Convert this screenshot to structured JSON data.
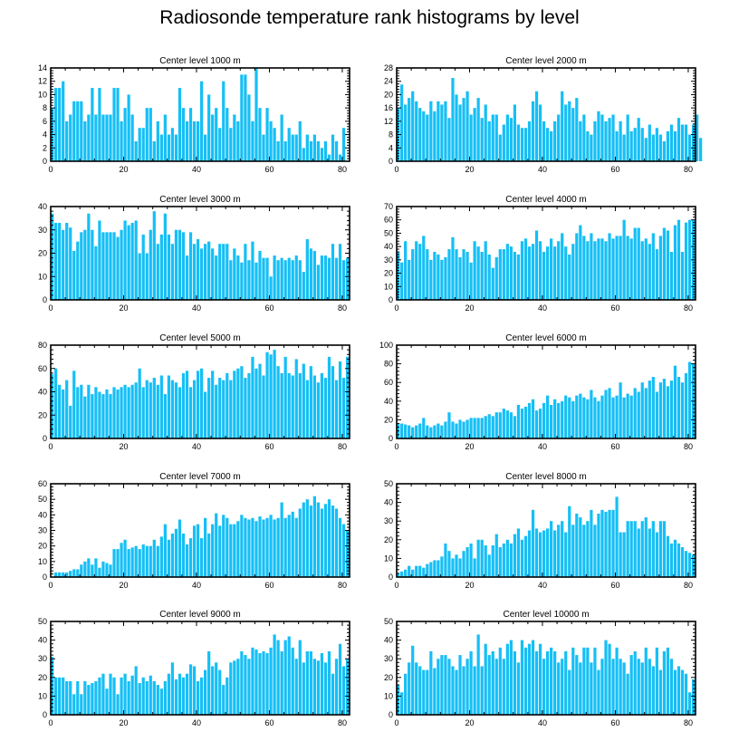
{
  "title": "Radiosonde temperature rank histograms by level",
  "colors": {
    "bar": "#15bff6",
    "axis": "#000000",
    "background": "#ffffff"
  },
  "chart_data": [
    {
      "type": "bar",
      "title": "Center level 1000 m",
      "xlim": [
        0,
        82
      ],
      "ylim": [
        0,
        14
      ],
      "xticks": [
        0,
        20,
        40,
        60,
        80
      ],
      "yticks": [
        0,
        2,
        4,
        6,
        8,
        10,
        12,
        14
      ],
      "values": [
        8,
        11,
        11,
        12,
        6,
        7,
        9,
        9,
        9,
        6,
        7,
        11,
        7,
        11,
        7,
        7,
        7,
        11,
        11,
        6,
        8,
        10,
        7,
        3,
        5,
        5,
        8,
        8,
        3,
        6,
        4,
        7,
        4,
        5,
        4,
        11,
        8,
        6,
        8,
        6,
        6,
        12,
        4,
        10,
        7,
        8,
        5,
        12,
        8,
        5,
        7,
        6,
        13,
        13,
        10,
        6,
        14,
        8,
        4,
        8,
        6,
        5,
        3,
        7,
        3,
        5,
        4,
        4,
        6,
        2,
        4,
        3,
        4,
        3,
        2,
        3,
        1,
        4,
        3,
        1,
        5,
        0
      ]
    },
    {
      "type": "bar",
      "title": "Center level 2000 m",
      "xlim": [
        0,
        82
      ],
      "ylim": [
        0,
        28
      ],
      "xticks": [
        0,
        20,
        40,
        60,
        80
      ],
      "yticks": [
        0,
        4,
        8,
        12,
        16,
        20,
        24,
        28
      ],
      "values": [
        16,
        23,
        17,
        19,
        21,
        18,
        16,
        15,
        14,
        18,
        15,
        18,
        17,
        18,
        13,
        25,
        20,
        17,
        19,
        21,
        14,
        16,
        19,
        13,
        17,
        12,
        14,
        14,
        8,
        11,
        14,
        13,
        17,
        11,
        10,
        10,
        12,
        18,
        21,
        17,
        12,
        10,
        9,
        12,
        14,
        21,
        17,
        18,
        16,
        19,
        12,
        14,
        9,
        8,
        12,
        15,
        14,
        12,
        13,
        14,
        9,
        12,
        8,
        14,
        9,
        10,
        13,
        10,
        7,
        11,
        8,
        10,
        8,
        6,
        9,
        11,
        9,
        13,
        11,
        11,
        8,
        11,
        14,
        7
      ]
    },
    {
      "type": "bar",
      "title": "Center level 3000 m",
      "xlim": [
        0,
        82
      ],
      "ylim": [
        0,
        40
      ],
      "xticks": [
        0,
        20,
        40,
        60,
        80
      ],
      "yticks": [
        0,
        10,
        20,
        30,
        40
      ],
      "values": [
        37,
        33,
        33,
        30,
        33,
        31,
        21,
        25,
        29,
        30,
        37,
        30,
        23,
        34,
        29,
        29,
        29,
        29,
        27,
        30,
        34,
        32,
        33,
        34,
        20,
        28,
        20,
        30,
        38,
        24,
        28,
        37,
        28,
        24,
        30,
        30,
        29,
        19,
        29,
        24,
        26,
        22,
        24,
        25,
        22,
        19,
        24,
        24,
        24,
        17,
        22,
        19,
        16,
        24,
        17,
        25,
        16,
        21,
        18,
        18,
        10,
        19,
        17,
        18,
        17,
        18,
        17,
        19,
        17,
        12,
        26,
        22,
        21,
        15,
        19,
        19,
        18,
        24,
        18,
        24,
        17,
        18
      ]
    },
    {
      "type": "bar",
      "title": "Center level 4000 m",
      "xlim": [
        0,
        82
      ],
      "ylim": [
        0,
        70
      ],
      "xticks": [
        0,
        20,
        40,
        60,
        80
      ],
      "yticks": [
        0,
        10,
        20,
        30,
        40,
        50,
        60,
        70
      ],
      "values": [
        36,
        28,
        44,
        30,
        38,
        44,
        42,
        48,
        38,
        30,
        36,
        34,
        30,
        32,
        38,
        47,
        38,
        32,
        38,
        36,
        28,
        44,
        40,
        36,
        44,
        34,
        24,
        32,
        38,
        38,
        42,
        40,
        36,
        34,
        44,
        46,
        40,
        42,
        52,
        44,
        36,
        40,
        46,
        40,
        44,
        50,
        40,
        34,
        42,
        50,
        56,
        48,
        44,
        50,
        44,
        46,
        46,
        44,
        50,
        46,
        48,
        48,
        60,
        48,
        46,
        54,
        54,
        44,
        46,
        42,
        50,
        38,
        48,
        54,
        52,
        36,
        56,
        60,
        36,
        58,
        60,
        60
      ]
    },
    {
      "type": "bar",
      "title": "Center level 5000 m",
      "xlim": [
        0,
        82
      ],
      "ylim": [
        0,
        80
      ],
      "xticks": [
        0,
        20,
        40,
        60,
        80
      ],
      "yticks": [
        0,
        20,
        40,
        60,
        80
      ],
      "values": [
        55,
        60,
        46,
        42,
        50,
        28,
        58,
        44,
        46,
        36,
        46,
        38,
        44,
        40,
        38,
        42,
        38,
        44,
        42,
        44,
        46,
        44,
        46,
        48,
        60,
        44,
        50,
        48,
        52,
        46,
        54,
        38,
        54,
        50,
        48,
        44,
        56,
        58,
        44,
        50,
        58,
        60,
        40,
        52,
        58,
        46,
        52,
        50,
        56,
        50,
        58,
        60,
        62,
        52,
        56,
        70,
        60,
        64,
        54,
        74,
        72,
        76,
        62,
        56,
        70,
        56,
        54,
        68,
        56,
        64,
        50,
        62,
        54,
        48,
        56,
        52,
        70,
        62,
        50,
        66,
        52,
        70
      ]
    },
    {
      "type": "bar",
      "title": "Center level 6000 m",
      "xlim": [
        0,
        82
      ],
      "ylim": [
        0,
        100
      ],
      "xticks": [
        0,
        20,
        40,
        60,
        80
      ],
      "yticks": [
        0,
        20,
        40,
        60,
        80,
        100
      ],
      "values": [
        16,
        16,
        15,
        14,
        12,
        14,
        16,
        22,
        14,
        12,
        14,
        16,
        14,
        18,
        28,
        18,
        16,
        20,
        18,
        20,
        22,
        22,
        22,
        22,
        24,
        26,
        24,
        28,
        28,
        32,
        30,
        28,
        24,
        36,
        32,
        34,
        38,
        42,
        30,
        32,
        38,
        46,
        36,
        42,
        38,
        40,
        46,
        44,
        40,
        46,
        48,
        44,
        42,
        52,
        44,
        40,
        46,
        52,
        54,
        44,
        46,
        60,
        44,
        48,
        46,
        54,
        50,
        60,
        54,
        62,
        66,
        50,
        60,
        64,
        56,
        62,
        78,
        66,
        60,
        70,
        82,
        80
      ]
    },
    {
      "type": "bar",
      "title": "Center level 7000 m",
      "xlim": [
        0,
        82
      ],
      "ylim": [
        0,
        60
      ],
      "xticks": [
        0,
        20,
        40,
        60,
        80
      ],
      "yticks": [
        0,
        10,
        20,
        30,
        40,
        50,
        60
      ],
      "values": [
        0,
        3,
        3,
        3,
        3,
        4,
        5,
        5,
        8,
        10,
        12,
        8,
        12,
        6,
        10,
        9,
        8,
        18,
        18,
        22,
        24,
        18,
        19,
        20,
        18,
        21,
        20,
        20,
        24,
        20,
        26,
        34,
        24,
        28,
        31,
        37,
        28,
        21,
        25,
        33,
        34,
        25,
        38,
        28,
        34,
        41,
        33,
        40,
        38,
        34,
        34,
        36,
        40,
        38,
        37,
        38,
        36,
        39,
        37,
        38,
        40,
        37,
        38,
        48,
        38,
        40,
        42,
        38,
        44,
        48,
        50,
        46,
        52,
        48,
        44,
        47,
        50,
        46,
        44,
        38,
        34,
        30
      ]
    },
    {
      "type": "bar",
      "title": "Center level 8000 m",
      "xlim": [
        0,
        82
      ],
      "ylim": [
        0,
        50
      ],
      "xticks": [
        0,
        20,
        40,
        60,
        80
      ],
      "yticks": [
        0,
        10,
        20,
        30,
        40,
        50
      ],
      "values": [
        2,
        3,
        4,
        6,
        4,
        6,
        6,
        5,
        7,
        8,
        9,
        9,
        11,
        18,
        14,
        10,
        12,
        10,
        14,
        16,
        18,
        10,
        20,
        20,
        17,
        12,
        17,
        23,
        16,
        18,
        20,
        18,
        23,
        26,
        20,
        22,
        25,
        36,
        26,
        24,
        25,
        26,
        30,
        25,
        28,
        30,
        24,
        38,
        28,
        34,
        32,
        28,
        30,
        36,
        28,
        34,
        36,
        35,
        36,
        36,
        43,
        24,
        24,
        30,
        30,
        30,
        26,
        30,
        32,
        26,
        30,
        24,
        30,
        30,
        22,
        18,
        20,
        18,
        16,
        14,
        13,
        12
      ]
    },
    {
      "type": "bar",
      "title": "Center level 9000 m",
      "xlim": [
        0,
        82
      ],
      "ylim": [
        0,
        50
      ],
      "xticks": [
        0,
        20,
        40,
        60,
        80
      ],
      "yticks": [
        0,
        10,
        20,
        30,
        40,
        50
      ],
      "values": [
        31,
        20,
        20,
        20,
        18,
        18,
        11,
        18,
        11,
        18,
        16,
        17,
        18,
        20,
        22,
        14,
        22,
        20,
        11,
        20,
        22,
        18,
        21,
        26,
        17,
        20,
        18,
        21,
        18,
        16,
        14,
        18,
        22,
        28,
        19,
        22,
        20,
        22,
        27,
        26,
        18,
        20,
        24,
        34,
        26,
        28,
        24,
        16,
        20,
        28,
        29,
        30,
        34,
        32,
        30,
        36,
        35,
        33,
        34,
        33,
        36,
        43,
        40,
        34,
        40,
        42,
        36,
        30,
        40,
        28,
        34,
        34,
        30,
        29,
        33,
        28,
        34,
        22,
        30,
        38,
        26,
        30
      ]
    },
    {
      "type": "bar",
      "title": "Center level 10000 m",
      "xlim": [
        0,
        82
      ],
      "ylim": [
        0,
        50
      ],
      "xticks": [
        0,
        20,
        40,
        60,
        80
      ],
      "yticks": [
        0,
        10,
        20,
        30,
        40,
        50
      ],
      "values": [
        16,
        12,
        22,
        28,
        37,
        28,
        26,
        24,
        24,
        34,
        25,
        30,
        32,
        32,
        30,
        26,
        24,
        32,
        26,
        30,
        34,
        26,
        43,
        26,
        38,
        32,
        34,
        30,
        36,
        30,
        38,
        40,
        34,
        28,
        40,
        36,
        38,
        40,
        34,
        38,
        30,
        34,
        36,
        34,
        28,
        30,
        34,
        24,
        36,
        32,
        28,
        36,
        36,
        28,
        36,
        24,
        30,
        40,
        38,
        30,
        36,
        30,
        28,
        22,
        32,
        34,
        30,
        28,
        36,
        30,
        26,
        36,
        24,
        34,
        36,
        30,
        24,
        26,
        24,
        22,
        12,
        19
      ]
    }
  ]
}
